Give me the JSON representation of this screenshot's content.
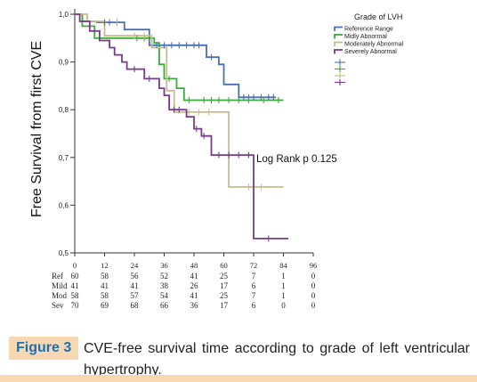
{
  "chart_data": {
    "type": "line",
    "subtype": "kaplan-meier",
    "ylabel": "Free Survival from first CVE",
    "xlabel": "",
    "xlim": [
      0,
      96
    ],
    "ylim": [
      0.5,
      1.0
    ],
    "x_ticks": [
      "0",
      "12",
      "24",
      "36",
      "48",
      "60",
      "72",
      "84",
      "96"
    ],
    "y_ticks": [
      "1,0",
      "0,9",
      "0,8",
      "0,7",
      "0,6",
      "0,5"
    ],
    "grid": false,
    "legend_title": "Grade of LVH",
    "legend_position": "top-right",
    "annotation": "Log Rank p 0.125",
    "series": [
      {
        "name": "Reference Range",
        "color": "#4a6fb5",
        "x": [
          0,
          3,
          3,
          9,
          9,
          20,
          20,
          30,
          30,
          43,
          43,
          53,
          53,
          58,
          58,
          60,
          60,
          66,
          66,
          81
        ],
        "y": [
          1.0,
          1.0,
          0.985,
          0.985,
          0.983,
          0.983,
          0.968,
          0.968,
          0.935,
          0.935,
          0.935,
          0.935,
          0.91,
          0.91,
          0.895,
          0.895,
          0.853,
          0.853,
          0.826,
          0.826
        ],
        "censored": [
          [
            12,
            0.983
          ],
          [
            14,
            0.983
          ],
          [
            17,
            0.983
          ],
          [
            33,
            0.935
          ],
          [
            36,
            0.935
          ],
          [
            39,
            0.935
          ],
          [
            42,
            0.935
          ],
          [
            45,
            0.935
          ],
          [
            48,
            0.935
          ],
          [
            50,
            0.935
          ],
          [
            55,
            0.91
          ],
          [
            68,
            0.826
          ],
          [
            70,
            0.826
          ],
          [
            72,
            0.826
          ],
          [
            75,
            0.826
          ],
          [
            78,
            0.826
          ],
          [
            80,
            0.826
          ]
        ]
      },
      {
        "name": "Midly Abnormal",
        "color": "#3daa3d",
        "x": [
          0,
          3,
          3,
          8,
          8,
          20,
          20,
          32,
          32,
          34,
          34,
          36,
          36,
          41,
          41,
          44,
          44,
          49,
          49,
          84
        ],
        "y": [
          1.0,
          1.0,
          0.975,
          0.975,
          0.95,
          0.95,
          0.95,
          0.95,
          0.94,
          0.94,
          0.895,
          0.895,
          0.865,
          0.865,
          0.845,
          0.845,
          0.82,
          0.82,
          0.82,
          0.82
        ],
        "censored": [
          [
            25,
            0.95
          ],
          [
            28,
            0.95
          ],
          [
            38,
            0.865
          ],
          [
            46,
            0.82
          ],
          [
            52,
            0.82
          ],
          [
            55,
            0.82
          ],
          [
            58,
            0.82
          ],
          [
            62,
            0.82
          ],
          [
            66,
            0.82
          ],
          [
            70,
            0.82
          ],
          [
            76,
            0.82
          ],
          [
            82,
            0.82
          ]
        ]
      },
      {
        "name": "Moderately Abnormal",
        "color": "#c8bc8e",
        "x": [
          0,
          5,
          5,
          12,
          12,
          22,
          22,
          31,
          31,
          37,
          37,
          40,
          40,
          58,
          58,
          62,
          62,
          84
        ],
        "y": [
          1.0,
          1.0,
          0.985,
          0.985,
          0.955,
          0.955,
          0.955,
          0.955,
          0.93,
          0.93,
          0.84,
          0.84,
          0.795,
          0.795,
          0.795,
          0.795,
          0.638,
          0.638
        ],
        "censored": [
          [
            17,
            0.985
          ],
          [
            24,
            0.955
          ],
          [
            28,
            0.955
          ],
          [
            46,
            0.795
          ],
          [
            50,
            0.795
          ],
          [
            54,
            0.795
          ],
          [
            70,
            0.638
          ],
          [
            75,
            0.638
          ]
        ]
      },
      {
        "name": "Severely Abnormal",
        "color": "#7a3a8e",
        "x": [
          0,
          2,
          2,
          6,
          6,
          10,
          10,
          14,
          14,
          16,
          16,
          19,
          19,
          21,
          21,
          28,
          28,
          34,
          34,
          36,
          36,
          38,
          38,
          45,
          45,
          48,
          48,
          51,
          51,
          55,
          55,
          72,
          72,
          86
        ],
        "y": [
          1.0,
          1.0,
          0.985,
          0.985,
          0.965,
          0.965,
          0.945,
          0.945,
          0.93,
          0.93,
          0.915,
          0.915,
          0.9,
          0.9,
          0.885,
          0.885,
          0.865,
          0.865,
          0.845,
          0.845,
          0.83,
          0.83,
          0.8,
          0.8,
          0.785,
          0.785,
          0.76,
          0.76,
          0.745,
          0.745,
          0.705,
          0.705,
          0.53,
          0.53
        ],
        "censored": [
          [
            24,
            0.885
          ],
          [
            30,
            0.865
          ],
          [
            40,
            0.8
          ],
          [
            42,
            0.8
          ],
          [
            49,
            0.76
          ],
          [
            52,
            0.745
          ],
          [
            58,
            0.705
          ],
          [
            62,
            0.705
          ],
          [
            66,
            0.705
          ],
          [
            70,
            0.705
          ],
          [
            78,
            0.53
          ]
        ]
      }
    ],
    "risk_table": {
      "times": [
        "0",
        "12",
        "24",
        "36",
        "48",
        "60",
        "72",
        "84",
        "96"
      ],
      "rows": [
        {
          "label": "Ref",
          "counts": [
            "60",
            "58",
            "56",
            "52",
            "41",
            "25",
            "7",
            "1",
            "0"
          ]
        },
        {
          "label": "Mild",
          "counts": [
            "41",
            "41",
            "41",
            "38",
            "26",
            "17",
            "6",
            "1",
            "0"
          ]
        },
        {
          "label": "Mod",
          "counts": [
            "58",
            "58",
            "57",
            "54",
            "41",
            "25",
            "7",
            "1",
            "0"
          ]
        },
        {
          "label": "Sev",
          "counts": [
            "70",
            "69",
            "68",
            "66",
            "36",
            "17",
            "6",
            "0",
            "0"
          ]
        }
      ]
    }
  },
  "caption": {
    "label": "Figure 3",
    "text": "CVE-free survival time according to grade of left ventricular hypertrophy."
  },
  "colors": {
    "caption_label_bg": "#f6d9b3",
    "caption_label_text": "#1f6fb5",
    "caption_rule": "#f6d9b3"
  }
}
